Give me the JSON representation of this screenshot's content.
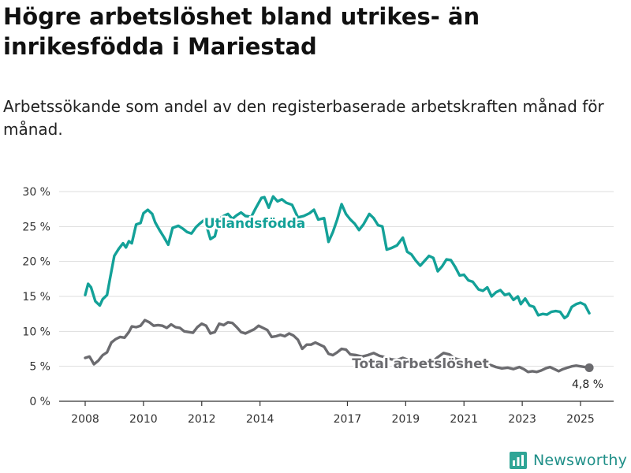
{
  "title": "Högre arbetslöshet bland utrikes- än inrikesfödda i Mariestad",
  "subtitle": "Arbetssökande som andel av den registerbaserade arbetskraften månad för månad.",
  "brand": {
    "name": "Newsworthy",
    "color": "#1f9e8f"
  },
  "colors": {
    "foreign": "#13a198",
    "total": "#6b6b6f",
    "grid": "#dddddd",
    "axis": "#333333"
  },
  "chart_data": {
    "type": "line",
    "x_ticks": [
      "2008",
      "2010",
      "2012",
      "2014",
      "2017",
      "2019",
      "2021",
      "2023",
      "2025"
    ],
    "y_ticks": [
      "0 %",
      "5 %",
      "10 %",
      "15 %",
      "20 %",
      "25 %",
      "30 %"
    ],
    "ylim": [
      0,
      30
    ],
    "xlim": [
      2007.5,
      2026
    ],
    "grid": true,
    "end_label": "4,8 %",
    "series": [
      {
        "name": "Utlandsfödda",
        "points": [
          [
            2008.0,
            15.2
          ],
          [
            2008.1,
            16.8
          ],
          [
            2008.2,
            16.3
          ],
          [
            2008.35,
            14.3
          ],
          [
            2008.5,
            13.7
          ],
          [
            2008.6,
            14.6
          ],
          [
            2008.75,
            15.2
          ],
          [
            2008.85,
            17.5
          ],
          [
            2009.0,
            20.8
          ],
          [
            2009.15,
            21.8
          ],
          [
            2009.3,
            22.6
          ],
          [
            2009.4,
            22.0
          ],
          [
            2009.5,
            22.9
          ],
          [
            2009.6,
            22.6
          ],
          [
            2009.75,
            25.3
          ],
          [
            2009.9,
            25.5
          ],
          [
            2010.0,
            26.9
          ],
          [
            2010.15,
            27.4
          ],
          [
            2010.3,
            26.8
          ],
          [
            2010.4,
            25.6
          ],
          [
            2010.55,
            24.5
          ],
          [
            2010.7,
            23.5
          ],
          [
            2010.85,
            22.4
          ],
          [
            2011.0,
            24.8
          ],
          [
            2011.2,
            25.1
          ],
          [
            2011.35,
            24.7
          ],
          [
            2011.5,
            24.2
          ],
          [
            2011.65,
            24.0
          ],
          [
            2011.8,
            24.9
          ],
          [
            2011.9,
            25.3
          ],
          [
            2012.1,
            26.0
          ],
          [
            2012.3,
            23.2
          ],
          [
            2012.45,
            23.6
          ],
          [
            2012.6,
            26.1
          ],
          [
            2012.75,
            26.5
          ],
          [
            2012.9,
            26.8
          ],
          [
            2013.05,
            26.1
          ],
          [
            2013.2,
            26.6
          ],
          [
            2013.35,
            27.0
          ],
          [
            2013.5,
            26.5
          ],
          [
            2013.7,
            26.4
          ],
          [
            2013.85,
            27.6
          ],
          [
            2014.05,
            29.1
          ],
          [
            2014.15,
            29.2
          ],
          [
            2014.3,
            27.7
          ],
          [
            2014.45,
            29.3
          ],
          [
            2014.6,
            28.6
          ],
          [
            2014.75,
            28.9
          ],
          [
            2014.9,
            28.4
          ],
          [
            2015.1,
            28.1
          ],
          [
            2015.3,
            26.3
          ],
          [
            2015.5,
            26.5
          ],
          [
            2015.7,
            26.9
          ],
          [
            2015.85,
            27.4
          ],
          [
            2016.0,
            26.0
          ],
          [
            2016.2,
            26.2
          ],
          [
            2016.35,
            22.8
          ],
          [
            2016.5,
            24.2
          ],
          [
            2016.65,
            26.0
          ],
          [
            2016.8,
            28.2
          ],
          [
            2016.95,
            26.8
          ],
          [
            2017.1,
            26.0
          ],
          [
            2017.25,
            25.4
          ],
          [
            2017.4,
            24.5
          ],
          [
            2017.55,
            25.3
          ],
          [
            2017.75,
            26.8
          ],
          [
            2017.9,
            26.2
          ],
          [
            2018.05,
            25.2
          ],
          [
            2018.2,
            25.0
          ],
          [
            2018.35,
            21.7
          ],
          [
            2018.5,
            21.9
          ],
          [
            2018.7,
            22.3
          ],
          [
            2018.9,
            23.4
          ],
          [
            2019.05,
            21.4
          ],
          [
            2019.2,
            21.0
          ],
          [
            2019.35,
            20.1
          ],
          [
            2019.5,
            19.4
          ],
          [
            2019.65,
            20.1
          ],
          [
            2019.8,
            20.8
          ],
          [
            2019.95,
            20.5
          ],
          [
            2020.1,
            18.6
          ],
          [
            2020.25,
            19.3
          ],
          [
            2020.4,
            20.3
          ],
          [
            2020.55,
            20.2
          ],
          [
            2020.7,
            19.2
          ],
          [
            2020.85,
            18.0
          ],
          [
            2021.0,
            18.1
          ],
          [
            2021.15,
            17.3
          ],
          [
            2021.3,
            17.1
          ],
          [
            2021.5,
            16.0
          ],
          [
            2021.65,
            15.8
          ],
          [
            2021.8,
            16.3
          ],
          [
            2021.95,
            15.0
          ],
          [
            2022.1,
            15.6
          ],
          [
            2022.25,
            15.9
          ],
          [
            2022.4,
            15.2
          ],
          [
            2022.55,
            15.4
          ],
          [
            2022.7,
            14.5
          ],
          [
            2022.85,
            15.0
          ],
          [
            2022.95,
            13.9
          ],
          [
            2023.1,
            14.7
          ],
          [
            2023.25,
            13.7
          ],
          [
            2023.4,
            13.5
          ],
          [
            2023.55,
            12.3
          ],
          [
            2023.7,
            12.5
          ],
          [
            2023.85,
            12.4
          ],
          [
            2024.0,
            12.8
          ],
          [
            2024.15,
            12.9
          ],
          [
            2024.3,
            12.8
          ],
          [
            2024.45,
            11.9
          ],
          [
            2024.55,
            12.2
          ],
          [
            2024.7,
            13.5
          ],
          [
            2024.85,
            13.9
          ],
          [
            2025.0,
            14.1
          ],
          [
            2025.15,
            13.8
          ],
          [
            2025.3,
            12.6
          ]
        ]
      },
      {
        "name": "Total arbetslöshet",
        "points": [
          [
            2008.0,
            6.2
          ],
          [
            2008.15,
            6.4
          ],
          [
            2008.3,
            5.3
          ],
          [
            2008.45,
            5.8
          ],
          [
            2008.6,
            6.6
          ],
          [
            2008.75,
            7.0
          ],
          [
            2008.9,
            8.4
          ],
          [
            2009.05,
            8.9
          ],
          [
            2009.2,
            9.2
          ],
          [
            2009.35,
            9.1
          ],
          [
            2009.5,
            9.9
          ],
          [
            2009.6,
            10.7
          ],
          [
            2009.75,
            10.6
          ],
          [
            2009.9,
            10.8
          ],
          [
            2010.05,
            11.6
          ],
          [
            2010.2,
            11.3
          ],
          [
            2010.35,
            10.8
          ],
          [
            2010.5,
            10.9
          ],
          [
            2010.65,
            10.8
          ],
          [
            2010.8,
            10.5
          ],
          [
            2010.95,
            11.0
          ],
          [
            2011.1,
            10.6
          ],
          [
            2011.25,
            10.5
          ],
          [
            2011.4,
            10.0
          ],
          [
            2011.55,
            9.9
          ],
          [
            2011.7,
            9.8
          ],
          [
            2011.85,
            10.6
          ],
          [
            2012.0,
            11.1
          ],
          [
            2012.15,
            10.8
          ],
          [
            2012.3,
            9.7
          ],
          [
            2012.45,
            9.9
          ],
          [
            2012.6,
            11.1
          ],
          [
            2012.75,
            10.9
          ],
          [
            2012.9,
            11.3
          ],
          [
            2013.05,
            11.2
          ],
          [
            2013.2,
            10.6
          ],
          [
            2013.35,
            9.9
          ],
          [
            2013.5,
            9.7
          ],
          [
            2013.65,
            10.0
          ],
          [
            2013.8,
            10.3
          ],
          [
            2013.95,
            10.8
          ],
          [
            2014.1,
            10.5
          ],
          [
            2014.25,
            10.2
          ],
          [
            2014.4,
            9.2
          ],
          [
            2014.55,
            9.3
          ],
          [
            2014.7,
            9.5
          ],
          [
            2014.85,
            9.3
          ],
          [
            2015.0,
            9.7
          ],
          [
            2015.15,
            9.4
          ],
          [
            2015.3,
            8.8
          ],
          [
            2015.45,
            7.5
          ],
          [
            2015.6,
            8.1
          ],
          [
            2015.75,
            8.1
          ],
          [
            2015.9,
            8.4
          ],
          [
            2016.05,
            8.1
          ],
          [
            2016.2,
            7.8
          ],
          [
            2016.35,
            6.8
          ],
          [
            2016.5,
            6.6
          ],
          [
            2016.65,
            7.0
          ],
          [
            2016.8,
            7.5
          ],
          [
            2016.95,
            7.4
          ],
          [
            2017.1,
            6.7
          ],
          [
            2017.3,
            6.6
          ],
          [
            2017.5,
            6.4
          ],
          [
            2017.7,
            6.6
          ],
          [
            2017.9,
            6.9
          ],
          [
            2018.1,
            6.5
          ],
          [
            2018.3,
            6.3
          ],
          [
            2018.5,
            6.0
          ],
          [
            2018.7,
            5.9
          ],
          [
            2018.9,
            6.2
          ],
          [
            2019.1,
            5.9
          ],
          [
            2019.3,
            5.7
          ],
          [
            2019.5,
            5.4
          ],
          [
            2019.7,
            5.6
          ],
          [
            2019.9,
            5.6
          ],
          [
            2020.1,
            6.3
          ],
          [
            2020.3,
            6.9
          ],
          [
            2020.5,
            6.7
          ],
          [
            2020.7,
            6.1
          ],
          [
            2020.9,
            5.9
          ],
          [
            2021.1,
            5.6
          ],
          [
            2021.3,
            5.5
          ],
          [
            2021.5,
            5.3
          ],
          [
            2021.7,
            5.1
          ],
          [
            2021.9,
            5.2
          ],
          [
            2022.1,
            4.9
          ],
          [
            2022.3,
            4.7
          ],
          [
            2022.5,
            4.8
          ],
          [
            2022.7,
            4.6
          ],
          [
            2022.9,
            4.9
          ],
          [
            2023.05,
            4.6
          ],
          [
            2023.2,
            4.2
          ],
          [
            2023.35,
            4.3
          ],
          [
            2023.5,
            4.2
          ],
          [
            2023.65,
            4.4
          ],
          [
            2023.8,
            4.7
          ],
          [
            2023.95,
            4.9
          ],
          [
            2024.1,
            4.6
          ],
          [
            2024.25,
            4.3
          ],
          [
            2024.4,
            4.6
          ],
          [
            2024.55,
            4.8
          ],
          [
            2024.7,
            5.0
          ],
          [
            2024.85,
            5.1
          ],
          [
            2025.0,
            5.0
          ],
          [
            2025.15,
            4.9
          ],
          [
            2025.3,
            4.8
          ]
        ]
      }
    ]
  }
}
